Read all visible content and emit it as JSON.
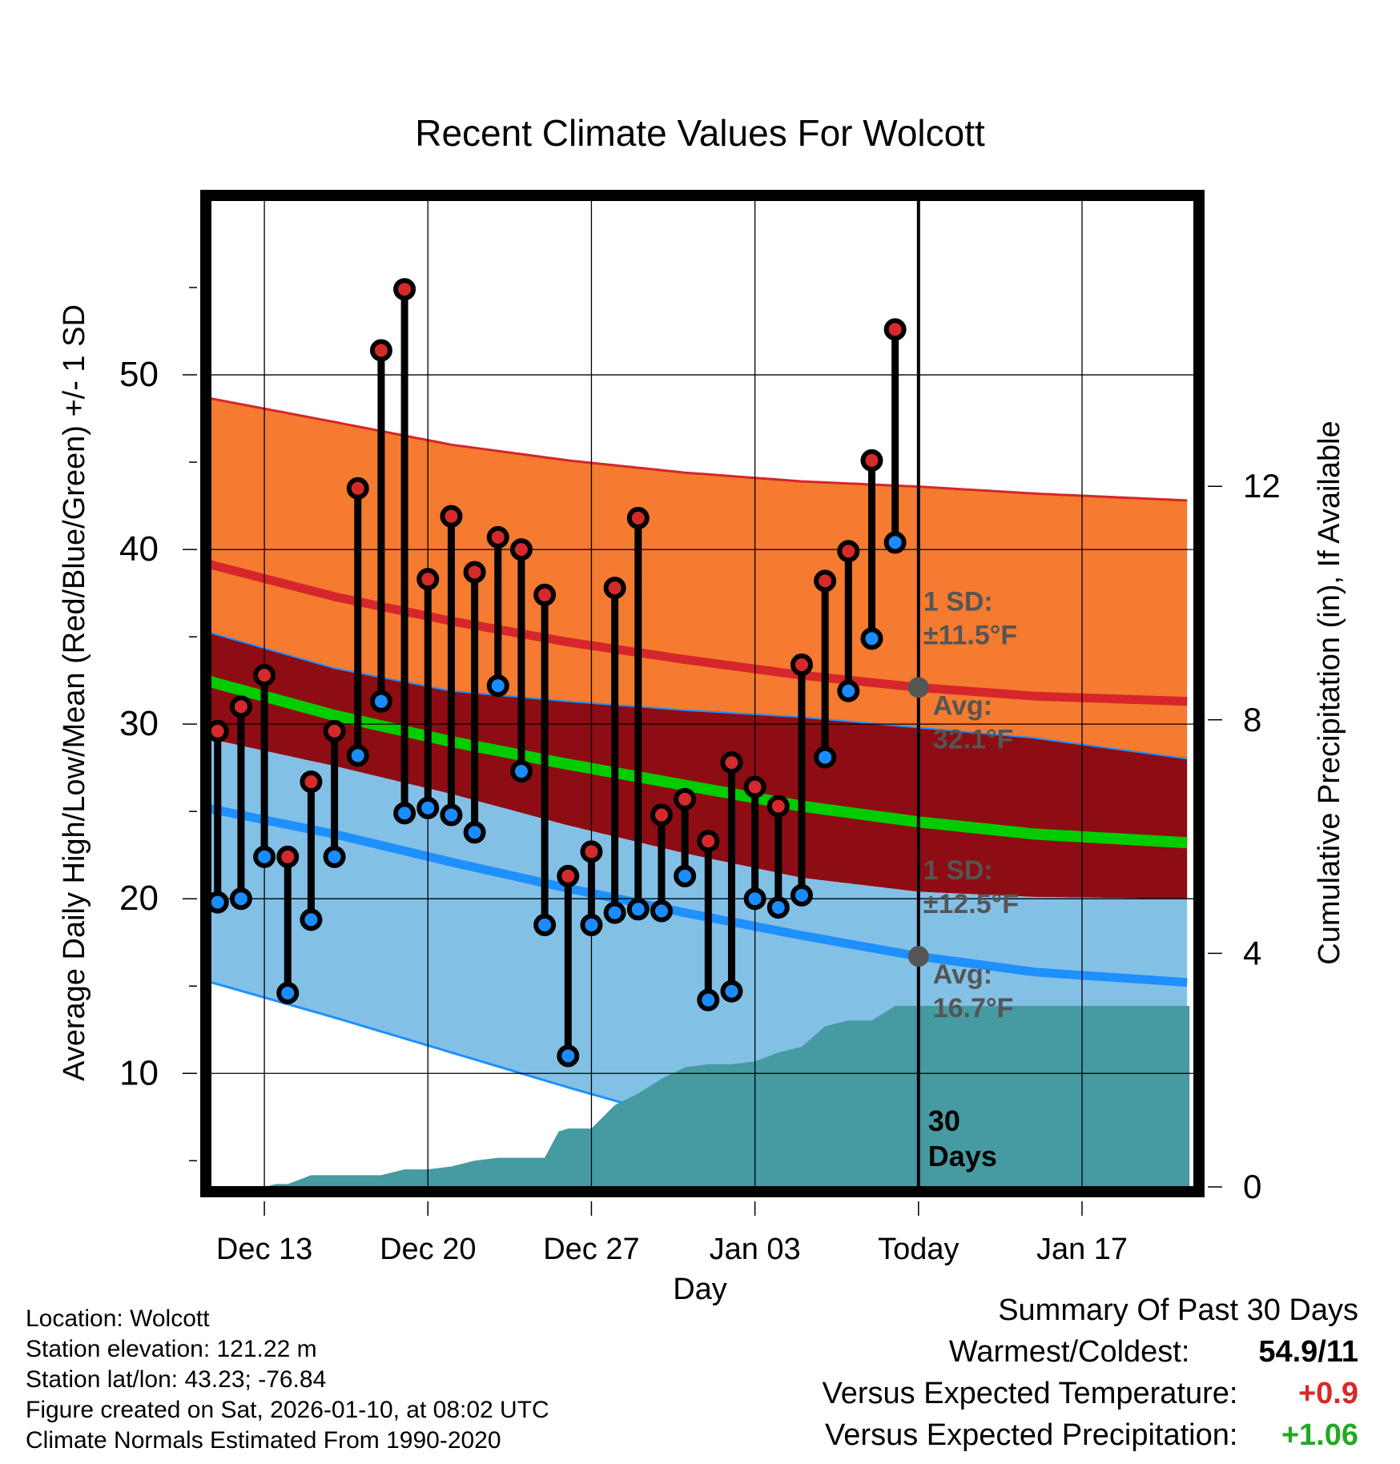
{
  "chart_data": {
    "type": "line",
    "title": "Recent Climate Values For Wolcott",
    "xlabel": "Day",
    "ylabel": "Average Daily High/Low/Mean (Red/Blue/Green) +/- 1 SD",
    "y2label": "Cumulative Precipitation (in), If Available",
    "ylim": [
      3.5,
      60
    ],
    "y2lim": [
      0,
      16.9
    ],
    "xlim": [
      -0.3,
      41.8
    ],
    "yticks": [
      10,
      20,
      30,
      40,
      50
    ],
    "y2ticks": [
      0,
      4,
      8,
      12
    ],
    "xticks": [
      {
        "x": 2,
        "label": "Dec 13"
      },
      {
        "x": 9,
        "label": "Dec 20"
      },
      {
        "x": 16,
        "label": "Dec 27"
      },
      {
        "x": 23,
        "label": "Jan 03"
      },
      {
        "x": 30,
        "label": "Today"
      },
      {
        "x": 37,
        "label": "Jan 17"
      }
    ],
    "today_x": 30,
    "days_label": "30 Days",
    "days": [
      0,
      1,
      2,
      3,
      4,
      5,
      6,
      7,
      8,
      9,
      10,
      11,
      12,
      13,
      14,
      15,
      16,
      17,
      18,
      19,
      20,
      21,
      22,
      23,
      24,
      25,
      26,
      27,
      28,
      29
    ],
    "highs": [
      29.6,
      31.0,
      32.8,
      22.4,
      26.7,
      29.6,
      43.5,
      51.4,
      54.9,
      38.3,
      41.9,
      38.7,
      40.7,
      40.0,
      37.4,
      21.3,
      22.7,
      37.8,
      41.8,
      24.8,
      25.7,
      23.3,
      27.8,
      26.4,
      25.3,
      33.4,
      38.2,
      39.9,
      45.1,
      52.6
    ],
    "lows": [
      19.8,
      20.0,
      22.4,
      14.6,
      18.8,
      22.4,
      28.2,
      31.3,
      24.9,
      25.2,
      24.8,
      23.8,
      32.2,
      27.3,
      18.5,
      11.0,
      18.5,
      19.2,
      19.4,
      19.3,
      21.3,
      14.2,
      14.7,
      20.0,
      19.5,
      20.2,
      28.1,
      31.9,
      34.9,
      40.4
    ],
    "normals": {
      "x": [
        -0.5,
        5,
        10,
        15,
        20,
        25,
        30,
        35,
        41.6
      ],
      "high_mean": [
        39.2,
        37.3,
        35.9,
        34.7,
        33.7,
        32.8,
        32.1,
        31.6,
        31.3
      ],
      "high_upper": [
        48.7,
        47.3,
        46.0,
        45.1,
        44.4,
        43.9,
        43.6,
        43.2,
        42.8
      ],
      "high_lower": [
        35.3,
        33.2,
        31.9,
        31.3,
        30.8,
        30.4,
        29.8,
        29.2,
        28.0
      ],
      "mean": [
        32.5,
        30.5,
        29.0,
        27.7,
        26.5,
        25.3,
        24.4,
        23.7,
        23.2
      ],
      "low_mean": [
        25.2,
        23.7,
        22.1,
        20.6,
        19.2,
        17.9,
        16.7,
        15.8,
        15.2
      ],
      "low_upper": [
        29.2,
        27.6,
        26.0,
        24.2,
        22.6,
        21.2,
        20.4,
        20.1,
        20.0
      ],
      "low_lower": [
        15.3,
        13.2,
        11.2,
        9.2,
        7.3,
        5.5,
        3.7,
        3.5,
        3.5
      ]
    },
    "precip_x": [
      -0.3,
      1,
      2,
      2.5,
      3,
      4,
      5,
      6,
      7,
      8,
      9,
      10,
      11,
      12,
      13,
      14,
      14.6,
      15,
      16,
      17,
      18,
      19,
      20,
      21,
      22,
      23,
      24,
      25,
      26,
      27,
      28,
      29,
      30,
      41.6
    ],
    "precip_cum": [
      0,
      0,
      0,
      0.05,
      0.05,
      0.2,
      0.2,
      0.2,
      0.2,
      0.3,
      0.3,
      0.35,
      0.45,
      0.5,
      0.5,
      0.5,
      0.95,
      1.0,
      1.0,
      1.4,
      1.6,
      1.85,
      2.05,
      2.1,
      2.1,
      2.15,
      2.3,
      2.4,
      2.75,
      2.85,
      2.85,
      3.1,
      3.1,
      3.1
    ],
    "annotations": {
      "high_sd": {
        "line1": "1 SD:",
        "line2": "±11.5°F"
      },
      "high_avg": {
        "line1": "Avg:",
        "line2": "32.1°F",
        "value": 32.1
      },
      "low_sd": {
        "line1": "1 SD:",
        "line2": "±12.5°F"
      },
      "low_avg": {
        "line1": "Avg:",
        "line2": "16.7°F",
        "value": 16.7
      }
    },
    "colors": {
      "high_band": "#f47b2f",
      "mean_band": "#8e0c13",
      "low_band": "#83c0e6",
      "high_line": "#d6262b",
      "mean_line": "#00cc00",
      "low_line": "#1e90ff",
      "precip": "#469aa2",
      "high_dot": "#d62a2a",
      "low_dot": "#1a8cff",
      "avg_marker": "#555555",
      "annotation_text": "#555555"
    }
  },
  "footer": {
    "location": "Location: Wolcott",
    "elevation": "Station elevation: 121.22 m",
    "latlon": "Station lat/lon: 43.23; -76.84",
    "created": "Figure created on Sat, 2026-01-10, at 08:02 UTC",
    "normals": "Climate Normals Estimated From 1990-2020"
  },
  "summary": {
    "title": "Summary Of Past 30 Days",
    "warmest_label": "Warmest/Coldest:",
    "warmest_value": "54.9/11",
    "temp_label": "Versus Expected Temperature:",
    "temp_value": "+0.9",
    "temp_color": "#d62a2a",
    "precip_label": "Versus Expected Precipitation:",
    "precip_value": "+1.06",
    "precip_color": "#22aa22"
  }
}
